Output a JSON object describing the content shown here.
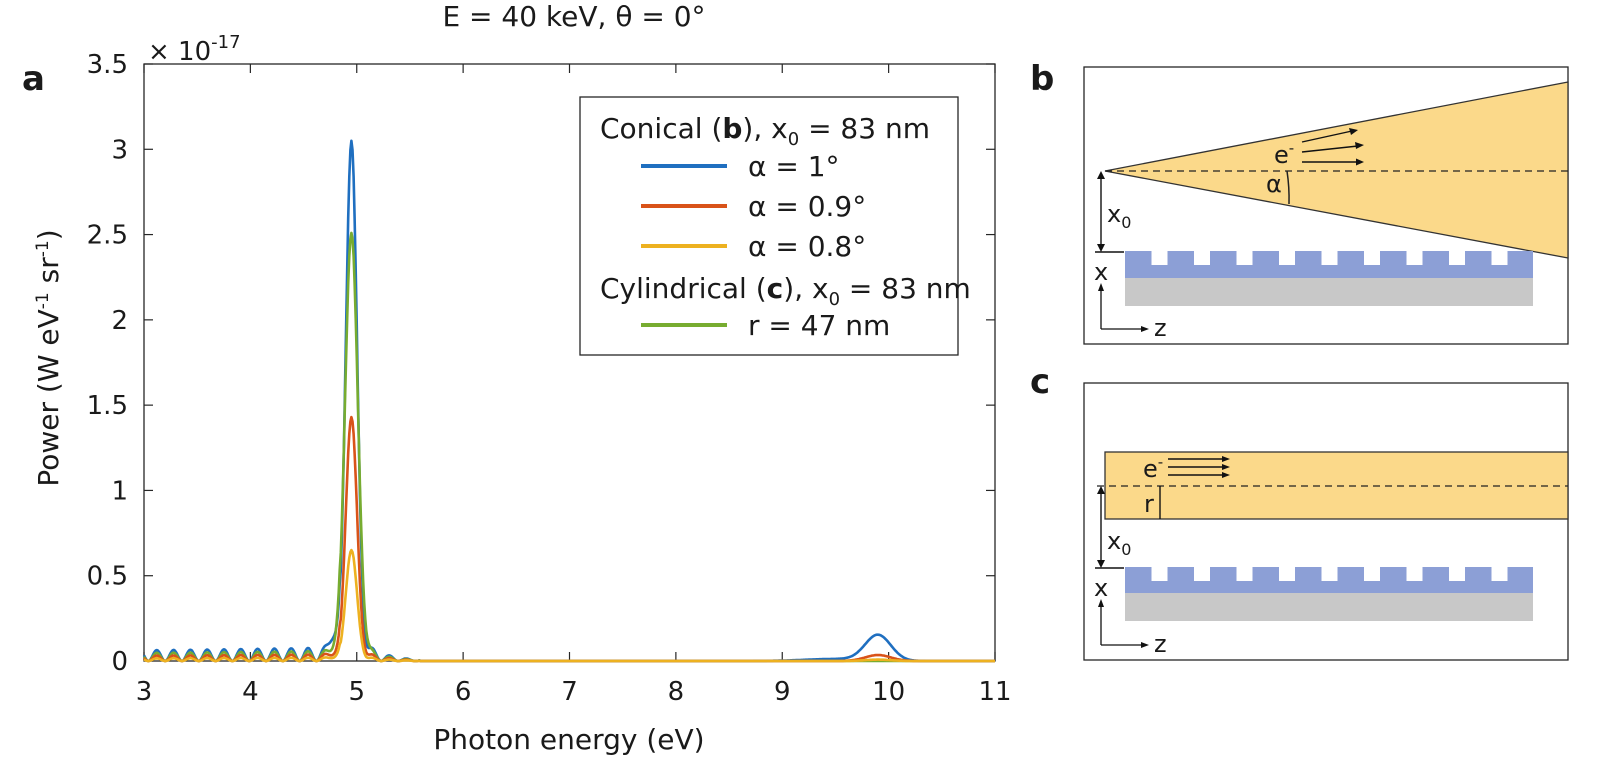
{
  "chart_data": {
    "type": "line",
    "panel_label": "a",
    "title": "E = 40 keV, θ = 0°",
    "xlabel": "Photon energy (eV)",
    "ylabel": "Power (W eV-1 sr-1)",
    "ylabel_parts": {
      "base": "Power (W eV",
      "exp1": "-1",
      "mid": " sr",
      "exp2": "-1",
      "end": ")"
    },
    "xlim": [
      3,
      11
    ],
    "ylim": [
      0,
      3.5
    ],
    "xticks": [
      3,
      4,
      5,
      6,
      7,
      8,
      9,
      10,
      11
    ],
    "xtick_labels": [
      "3",
      "4",
      "5",
      "6",
      "7",
      "8",
      "9",
      "10",
      "11"
    ],
    "yticks": [
      0,
      0.5,
      1,
      1.5,
      2,
      2.5,
      3,
      3.5
    ],
    "ytick_labels": [
      "0",
      "0.5",
      "1",
      "1.5",
      "2",
      "2.5",
      "3",
      "3.5"
    ],
    "y_multiplier": {
      "base": "× 10",
      "exp": "-17"
    },
    "legend": {
      "position": "top-right",
      "group1_title": {
        "pre": "Conical (",
        "bold": "b",
        "post": "), x",
        "sub": "0",
        "tail": " = 83 nm"
      },
      "group2_title": {
        "pre": "Cylindrical (",
        "bold": "c",
        "post": "), x",
        "sub": "0",
        "tail": " = 83 nm"
      }
    },
    "series": [
      {
        "name": "α = 1°",
        "color": "#1f6fc0",
        "peak1": 3.05,
        "peak2": 0.15,
        "side": 0.08
      },
      {
        "name": "α = 0.9°",
        "color": "#d95319",
        "peak1": 1.43,
        "peak2": 0.035,
        "side": 0.04
      },
      {
        "name": "α = 0.8°",
        "color": "#edb120",
        "peak1": 0.65,
        "peak2": 0.008,
        "side": 0.02
      },
      {
        "name": "r = 47 nm",
        "color": "#77ac30",
        "peak1": 2.51,
        "peak2": 0.0,
        "side": 0.06
      }
    ]
  },
  "schematic_b": {
    "panel_label": "b",
    "electron": "e",
    "electron_sup": "-",
    "angle_label": "α",
    "x0": {
      "base": "x",
      "sub": "0"
    },
    "axis_x": "x",
    "axis_z": "z"
  },
  "schematic_c": {
    "panel_label": "c",
    "electron": "e",
    "electron_sup": "-",
    "radius_label": "r",
    "x0": {
      "base": "x",
      "sub": "0"
    },
    "axis_x": "x",
    "axis_z": "z"
  },
  "colors": {
    "beam": "#fbd98a",
    "grating": "#8c9fd6",
    "substrate": "#c8c8c8"
  }
}
